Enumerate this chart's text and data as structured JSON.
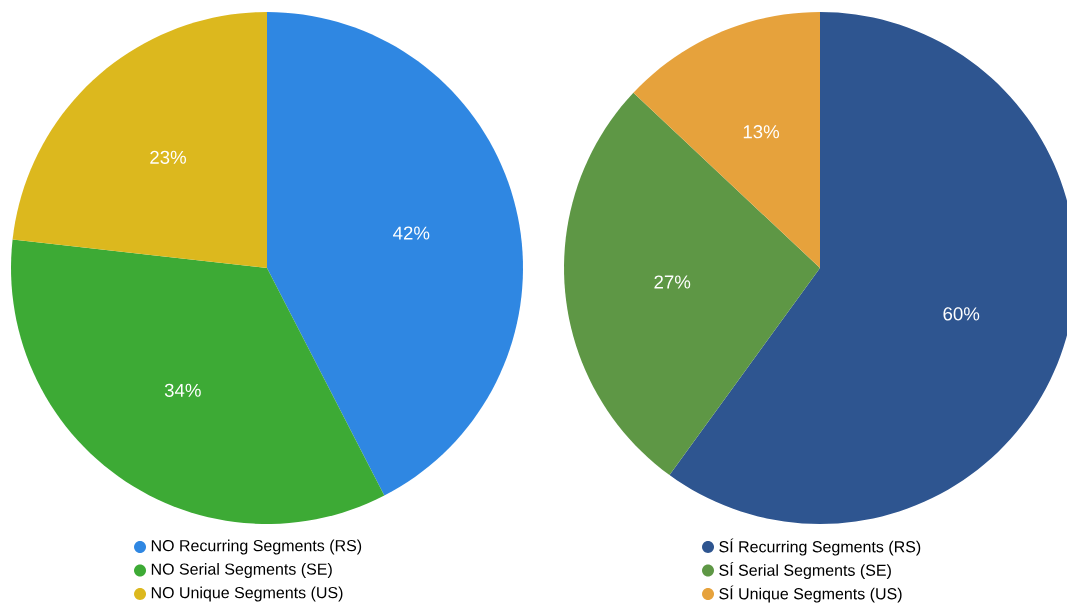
{
  "chart_data": [
    {
      "type": "pie",
      "categories": [
        "NO Recurring Segments (RS)",
        "NO Serial Segments (SE)",
        "NO Unique Segments (US)"
      ],
      "values": [
        42,
        34,
        23
      ],
      "colors": [
        "#2f87e2",
        "#3daa35",
        "#dcb81e"
      ],
      "data_labels": true,
      "value_labels": [
        "42%",
        "34%",
        "23%"
      ],
      "legend": "bottom"
    },
    {
      "type": "pie",
      "categories": [
        "SÍ Recurring Segments (RS)",
        "SÍ Serial Segments (SE)",
        "SÍ Unique Segments (US)"
      ],
      "values": [
        60,
        27,
        13
      ],
      "colors": [
        "#2e5590",
        "#5e9745",
        "#e6a23c"
      ],
      "data_labels": true,
      "value_labels": [
        "60%",
        "27%",
        "13%"
      ],
      "legend": "bottom"
    }
  ]
}
